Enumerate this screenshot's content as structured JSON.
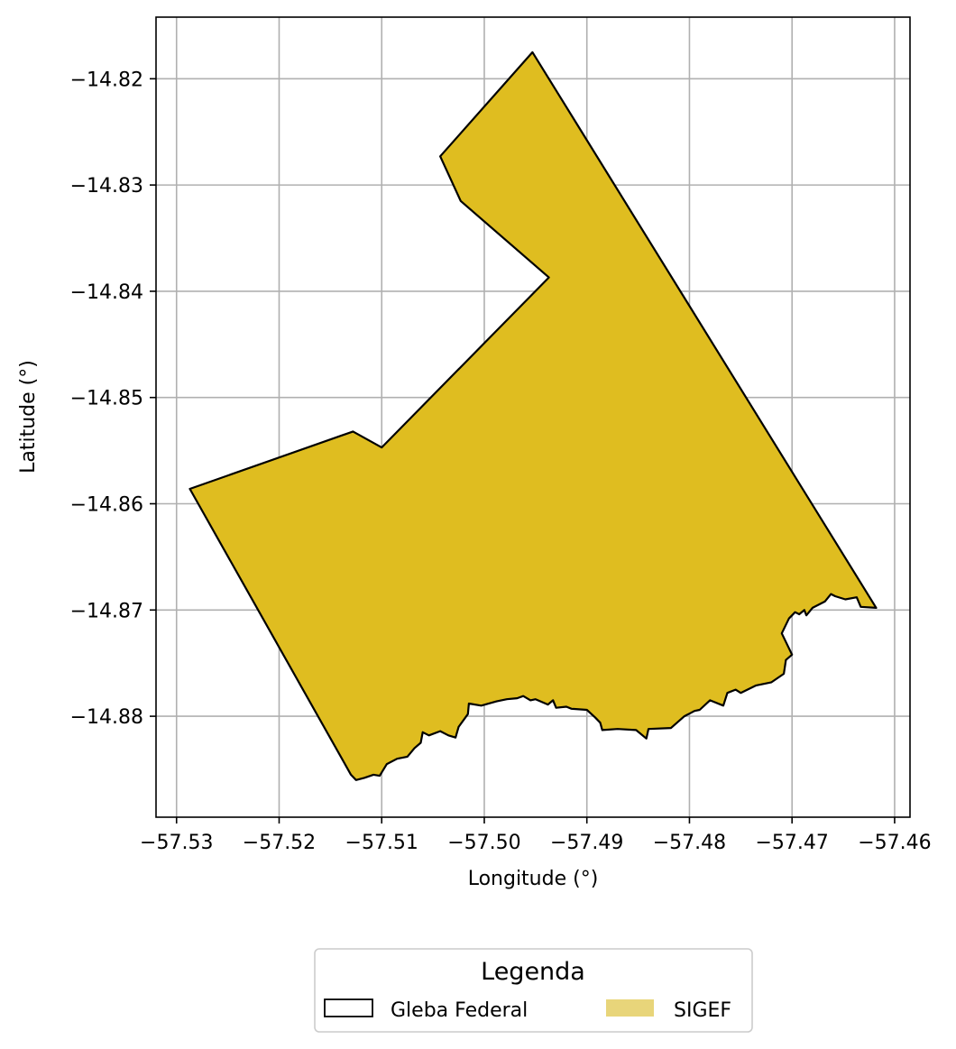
{
  "chart_data": {
    "type": "map",
    "xlabel": "Longitude (°)",
    "ylabel": "Latitude (°)",
    "xlim": [
      -57.532,
      -57.4585
    ],
    "ylim": [
      -14.8895,
      -14.8142
    ],
    "grid": true,
    "x_ticks": [
      -57.53,
      -57.52,
      -57.51,
      -57.5,
      -57.49,
      -57.48,
      -57.47,
      -57.46
    ],
    "x_tick_labels": [
      "−57.53",
      "−57.52",
      "−57.51",
      "−57.50",
      "−57.49",
      "−57.48",
      "−57.47",
      "−57.46"
    ],
    "y_ticks": [
      -14.82,
      -14.83,
      -14.84,
      -14.85,
      -14.86,
      -14.87,
      -14.88
    ],
    "y_tick_labels": [
      "−14.82",
      "−14.83",
      "−14.84",
      "−14.85",
      "−14.86",
      "−14.87",
      "−14.88"
    ],
    "polygon_fill": "#dfbd20",
    "polygon_stroke": "#000000",
    "polygon": [
      [
        -57.4953,
        -14.8175
      ],
      [
        -57.4618,
        -14.8698
      ],
      [
        -57.4633,
        -14.8697
      ],
      [
        -57.4637,
        -14.8688
      ],
      [
        -57.4648,
        -14.869
      ],
      [
        -57.4658,
        -14.8687
      ],
      [
        -57.4662,
        -14.8685
      ],
      [
        -57.4668,
        -14.8692
      ],
      [
        -57.468,
        -14.8698
      ],
      [
        -57.4686,
        -14.8705
      ],
      [
        -57.4688,
        -14.87
      ],
      [
        -57.4693,
        -14.8704
      ],
      [
        -57.4697,
        -14.8702
      ],
      [
        -57.4703,
        -14.8708
      ],
      [
        -57.471,
        -14.8722
      ],
      [
        -57.47,
        -14.8742
      ],
      [
        -57.4706,
        -14.8747
      ],
      [
        -57.4708,
        -14.876
      ],
      [
        -57.472,
        -14.8768
      ],
      [
        -57.4735,
        -14.8771
      ],
      [
        -57.475,
        -14.8778
      ],
      [
        -57.4755,
        -14.8775
      ],
      [
        -57.4763,
        -14.8778
      ],
      [
        -57.4767,
        -14.879
      ],
      [
        -57.478,
        -14.8785
      ],
      [
        -57.479,
        -14.8794
      ],
      [
        -57.4795,
        -14.8795
      ],
      [
        -57.4805,
        -14.88
      ],
      [
        -57.4818,
        -14.8811
      ],
      [
        -57.484,
        -14.8812
      ],
      [
        -57.4842,
        -14.8821
      ],
      [
        -57.4852,
        -14.8813
      ],
      [
        -57.487,
        -14.8812
      ],
      [
        -57.4885,
        -14.8813
      ],
      [
        -57.4887,
        -14.8806
      ],
      [
        -57.4892,
        -14.8801
      ],
      [
        -57.49,
        -14.8794
      ],
      [
        -57.4915,
        -14.8793
      ],
      [
        -57.492,
        -14.8791
      ],
      [
        -57.493,
        -14.8792
      ],
      [
        -57.4933,
        -14.8785
      ],
      [
        -57.4938,
        -14.8789
      ],
      [
        -57.495,
        -14.8784
      ],
      [
        -57.4955,
        -14.8785
      ],
      [
        -57.4962,
        -14.8781
      ],
      [
        -57.4968,
        -14.8783
      ],
      [
        -57.4978,
        -14.8784
      ],
      [
        -57.4988,
        -14.8786
      ],
      [
        -57.5003,
        -14.879
      ],
      [
        -57.5015,
        -14.8788
      ],
      [
        -57.5016,
        -14.8798
      ],
      [
        -57.5025,
        -14.881
      ],
      [
        -57.5028,
        -14.882
      ],
      [
        -57.5035,
        -14.8818
      ],
      [
        -57.5043,
        -14.8814
      ],
      [
        -57.5054,
        -14.8818
      ],
      [
        -57.506,
        -14.8815
      ],
      [
        -57.5062,
        -14.8825
      ],
      [
        -57.5068,
        -14.883
      ],
      [
        -57.5075,
        -14.8838
      ],
      [
        -57.5085,
        -14.884
      ],
      [
        -57.5095,
        -14.8845
      ],
      [
        -57.5102,
        -14.8856
      ],
      [
        -57.5108,
        -14.8855
      ],
      [
        -57.5117,
        -14.8858
      ],
      [
        -57.5125,
        -14.886
      ],
      [
        -57.513,
        -14.8855
      ],
      [
        -57.5287,
        -14.8586
      ],
      [
        -57.5128,
        -14.8532
      ],
      [
        -57.51,
        -14.8547
      ],
      [
        -57.4937,
        -14.8387
      ],
      [
        -57.5023,
        -14.8315
      ],
      [
        -57.5043,
        -14.8273
      ],
      [
        -57.4953,
        -14.8175
      ]
    ]
  },
  "legend": {
    "title": "Legenda",
    "items": [
      {
        "label": "Gleba Federal",
        "style": "outline",
        "color": "#000000"
      },
      {
        "label": "SIGEF",
        "style": "filled",
        "color": "#e8d57a"
      }
    ]
  }
}
